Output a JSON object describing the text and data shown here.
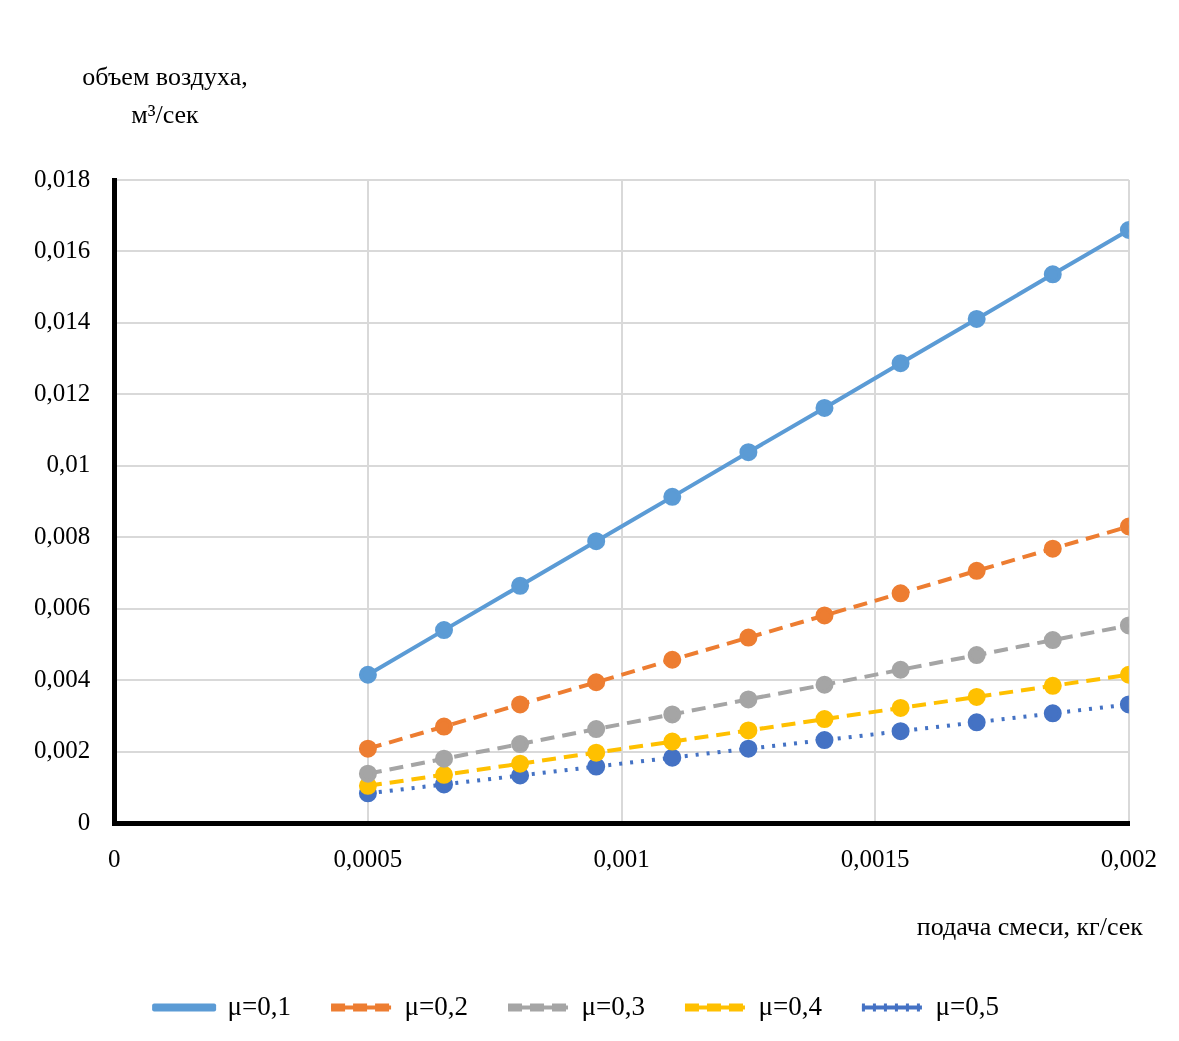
{
  "chart_data": {
    "type": "line",
    "xlabel": "подача смеси, кг/сек",
    "ylabel": "объем воздуха, м³/сек",
    "x": [
      0.0005,
      0.00065,
      0.0008,
      0.00095,
      0.0011,
      0.00125,
      0.0014,
      0.00155,
      0.0017,
      0.00185,
      0.002
    ],
    "series": [
      {
        "name": "μ=0,1",
        "color": "#5b9bd5",
        "line_style": "solid",
        "values": [
          0.00415,
          0.0054,
          0.00664,
          0.00789,
          0.00913,
          0.01038,
          0.01162,
          0.01287,
          0.01411,
          0.01536,
          0.0166
        ]
      },
      {
        "name": "μ=0,2",
        "color": "#ed7d31",
        "line_style": "dashed",
        "values": [
          0.00208,
          0.0027,
          0.00332,
          0.00394,
          0.00457,
          0.00519,
          0.00581,
          0.00643,
          0.00706,
          0.00768,
          0.0083
        ]
      },
      {
        "name": "μ=0,3",
        "color": "#a5a5a5",
        "line_style": "dashed",
        "values": [
          0.00138,
          0.0018,
          0.00221,
          0.00263,
          0.00304,
          0.00346,
          0.00387,
          0.00429,
          0.0047,
          0.00512,
          0.00553
        ]
      },
      {
        "name": "μ=0,4",
        "color": "#ffc000",
        "line_style": "dashed",
        "values": [
          0.00104,
          0.00135,
          0.00166,
          0.00197,
          0.00228,
          0.00259,
          0.00291,
          0.00322,
          0.00353,
          0.00384,
          0.00415
        ]
      },
      {
        "name": "μ=0,5",
        "color": "#4472c4",
        "line_style": "dotted",
        "values": [
          0.00083,
          0.00108,
          0.00133,
          0.00158,
          0.00183,
          0.00208,
          0.00232,
          0.00257,
          0.00282,
          0.00307,
          0.00332
        ]
      }
    ],
    "xlim": [
      0,
      0.002
    ],
    "xticks": [
      0,
      {
        "value": 0.0005,
        "label": "0,0005"
      },
      {
        "value": 0.001,
        "label": "0,001"
      },
      {
        "value": 0.0015,
        "label": "0,0015"
      },
      {
        "value": 0.002,
        "label": "0,002"
      }
    ],
    "ylim": [
      0,
      0.018
    ],
    "yticks": [
      0,
      {
        "value": 0.002,
        "label": "0,002"
      },
      {
        "value": 0.004,
        "label": "0,004"
      },
      {
        "value": 0.006,
        "label": "0,006"
      },
      {
        "value": 0.008,
        "label": "0,008"
      },
      {
        "value": 0.01,
        "label": "0,01"
      },
      {
        "value": 0.012,
        "label": "0,012"
      },
      {
        "value": 0.014,
        "label": "0,014"
      },
      {
        "value": 0.016,
        "label": "0,016"
      },
      {
        "value": 0.018,
        "label": "0,018"
      }
    ],
    "grid": true,
    "legend": "bottom",
    "marker": "circle"
  }
}
